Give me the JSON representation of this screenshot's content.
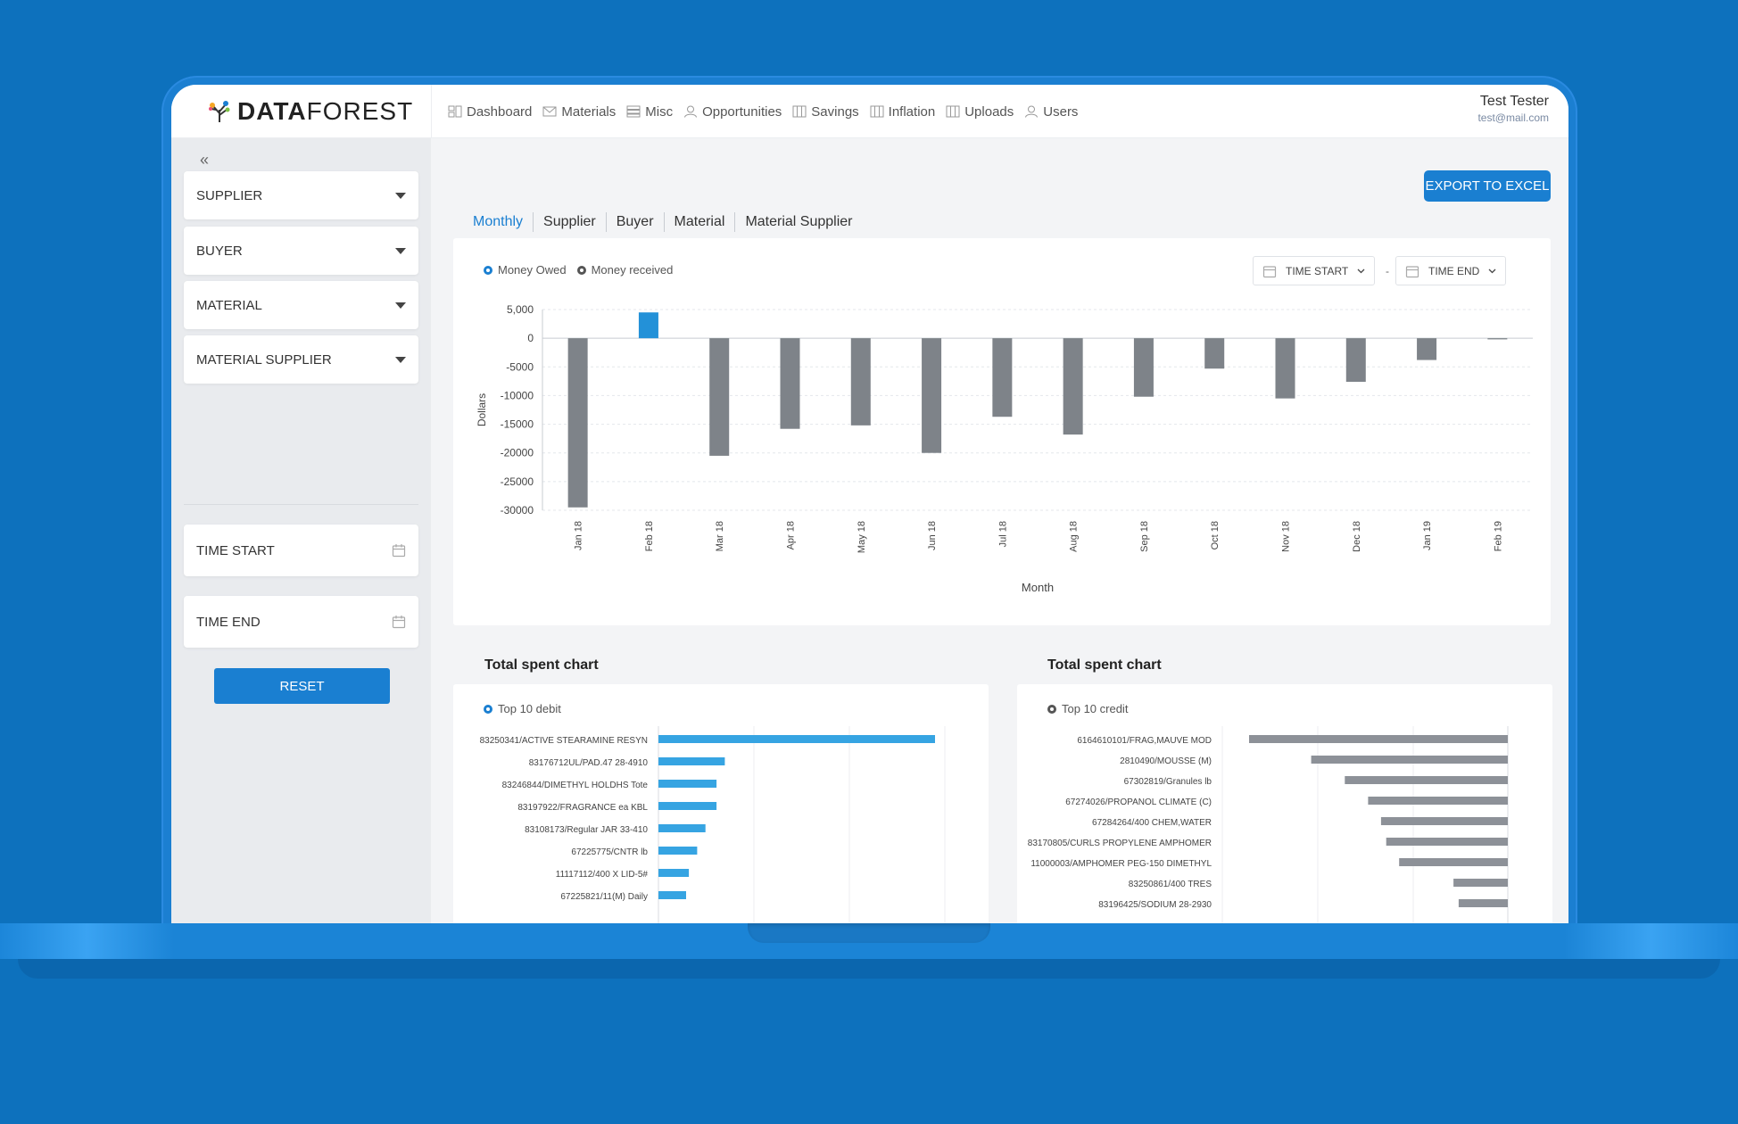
{
  "brand": {
    "logo_bold": "DATA",
    "logo_light": "FOREST"
  },
  "nav": [
    {
      "label": "Dashboard",
      "icon": "dashboard-icon"
    },
    {
      "label": "Materials",
      "icon": "envelope-icon"
    },
    {
      "label": "Misc",
      "icon": "stack-icon"
    },
    {
      "label": "Opportunities",
      "icon": "user-icon"
    },
    {
      "label": "Savings",
      "icon": "columns-icon"
    },
    {
      "label": "Inflation",
      "icon": "columns-icon"
    },
    {
      "label": "Uploads",
      "icon": "columns-icon"
    },
    {
      "label": "Users",
      "icon": "user-icon"
    }
  ],
  "user": {
    "name": "Test Tester",
    "email": "test@mail.com"
  },
  "sidebar": {
    "collapse_label": "«",
    "filters": [
      "SUPPLIER",
      "BUYER",
      "MATERIAL",
      "MATERIAL SUPPLIER"
    ],
    "time_start": "TIME START",
    "time_end": "TIME END",
    "reset_label": "RESET"
  },
  "main": {
    "export_label": "EXPORT TO EXCEL",
    "tabs": [
      "Monthly",
      "Supplier",
      "Buyer",
      "Material",
      "Material Supplier"
    ],
    "active_tab": "Monthly",
    "legend": [
      "Money Owed",
      "Money received"
    ],
    "time_start": "TIME START",
    "time_end": "TIME END",
    "date_separator": "-",
    "debit_title": "Total spent chart",
    "debit_legend": "Top 10 debit",
    "credit_title": "Total spent chart",
    "credit_legend": "Top 10 credit"
  },
  "colors": {
    "accent": "#1a7fd1",
    "bar_positive": "#2391d8",
    "bar_negative": "#7e8389",
    "debit_bar": "#36a4e2",
    "credit_bar": "#8d9198"
  },
  "chart_data": [
    {
      "type": "bar",
      "xlabel": "Month",
      "ylabel": "Dollars",
      "ylim": [
        -30000,
        5000
      ],
      "yticks": [
        5000,
        0,
        -5000,
        -10000,
        -15000,
        -20000,
        -25000,
        -30000
      ],
      "ytick_labels": [
        "5,000",
        "0",
        "-5000",
        "-10000",
        "-15000",
        "-20000",
        "-25000",
        "-30000"
      ],
      "categories": [
        "Jan 18",
        "Feb 18",
        "Mar 18",
        "Apr 18",
        "May 18",
        "Jun 18",
        "Jul 18",
        "Aug 18",
        "Sep 18",
        "Oct 18",
        "Nov 18",
        "Dec 18",
        "Jan 19",
        "Feb 19"
      ],
      "values": [
        -29500,
        4500,
        -20500,
        -15800,
        -15200,
        -20000,
        -13700,
        -16800,
        -10200,
        -5300,
        -10500,
        -7600,
        -3800,
        -200
      ],
      "grid": true
    },
    {
      "type": "bar",
      "orientation": "horizontal",
      "categories": [
        "83250341/ACTIVE STEARAMINE RESYN",
        "83176712UL/PAD.47 28-4910",
        "83246844/DIMETHYL HOLDHS Tote",
        "83197922/FRAGRANCE ea KBL",
        "83108173/Regular JAR 33-410",
        "67225775/CNTR lb",
        "11117112/400 X LID-5#",
        "67225821/11(M) Daily"
      ],
      "values": [
        100,
        24,
        21,
        21,
        17,
        14,
        11,
        10
      ],
      "grid": true
    },
    {
      "type": "bar",
      "orientation": "horizontal",
      "categories": [
        "6164610101/FRAG,MAUVE MOD",
        "2810490/MOUSSE (M)",
        "67302819/Granules lb",
        "67274026/PROPANOL CLIMATE (C)",
        "67284264/400 CHEM,WATER",
        "83170805/CURLS PROPYLENE AMPHOMER",
        "11000003/AMPHOMER PEG-150 DIMETHYL",
        "83250861/400 TRES",
        "83196425/SODIUM 28-2930"
      ],
      "values": [
        -100,
        -76,
        -63,
        -54,
        -49,
        -47,
        -42,
        -21,
        -19
      ],
      "grid": true
    }
  ]
}
